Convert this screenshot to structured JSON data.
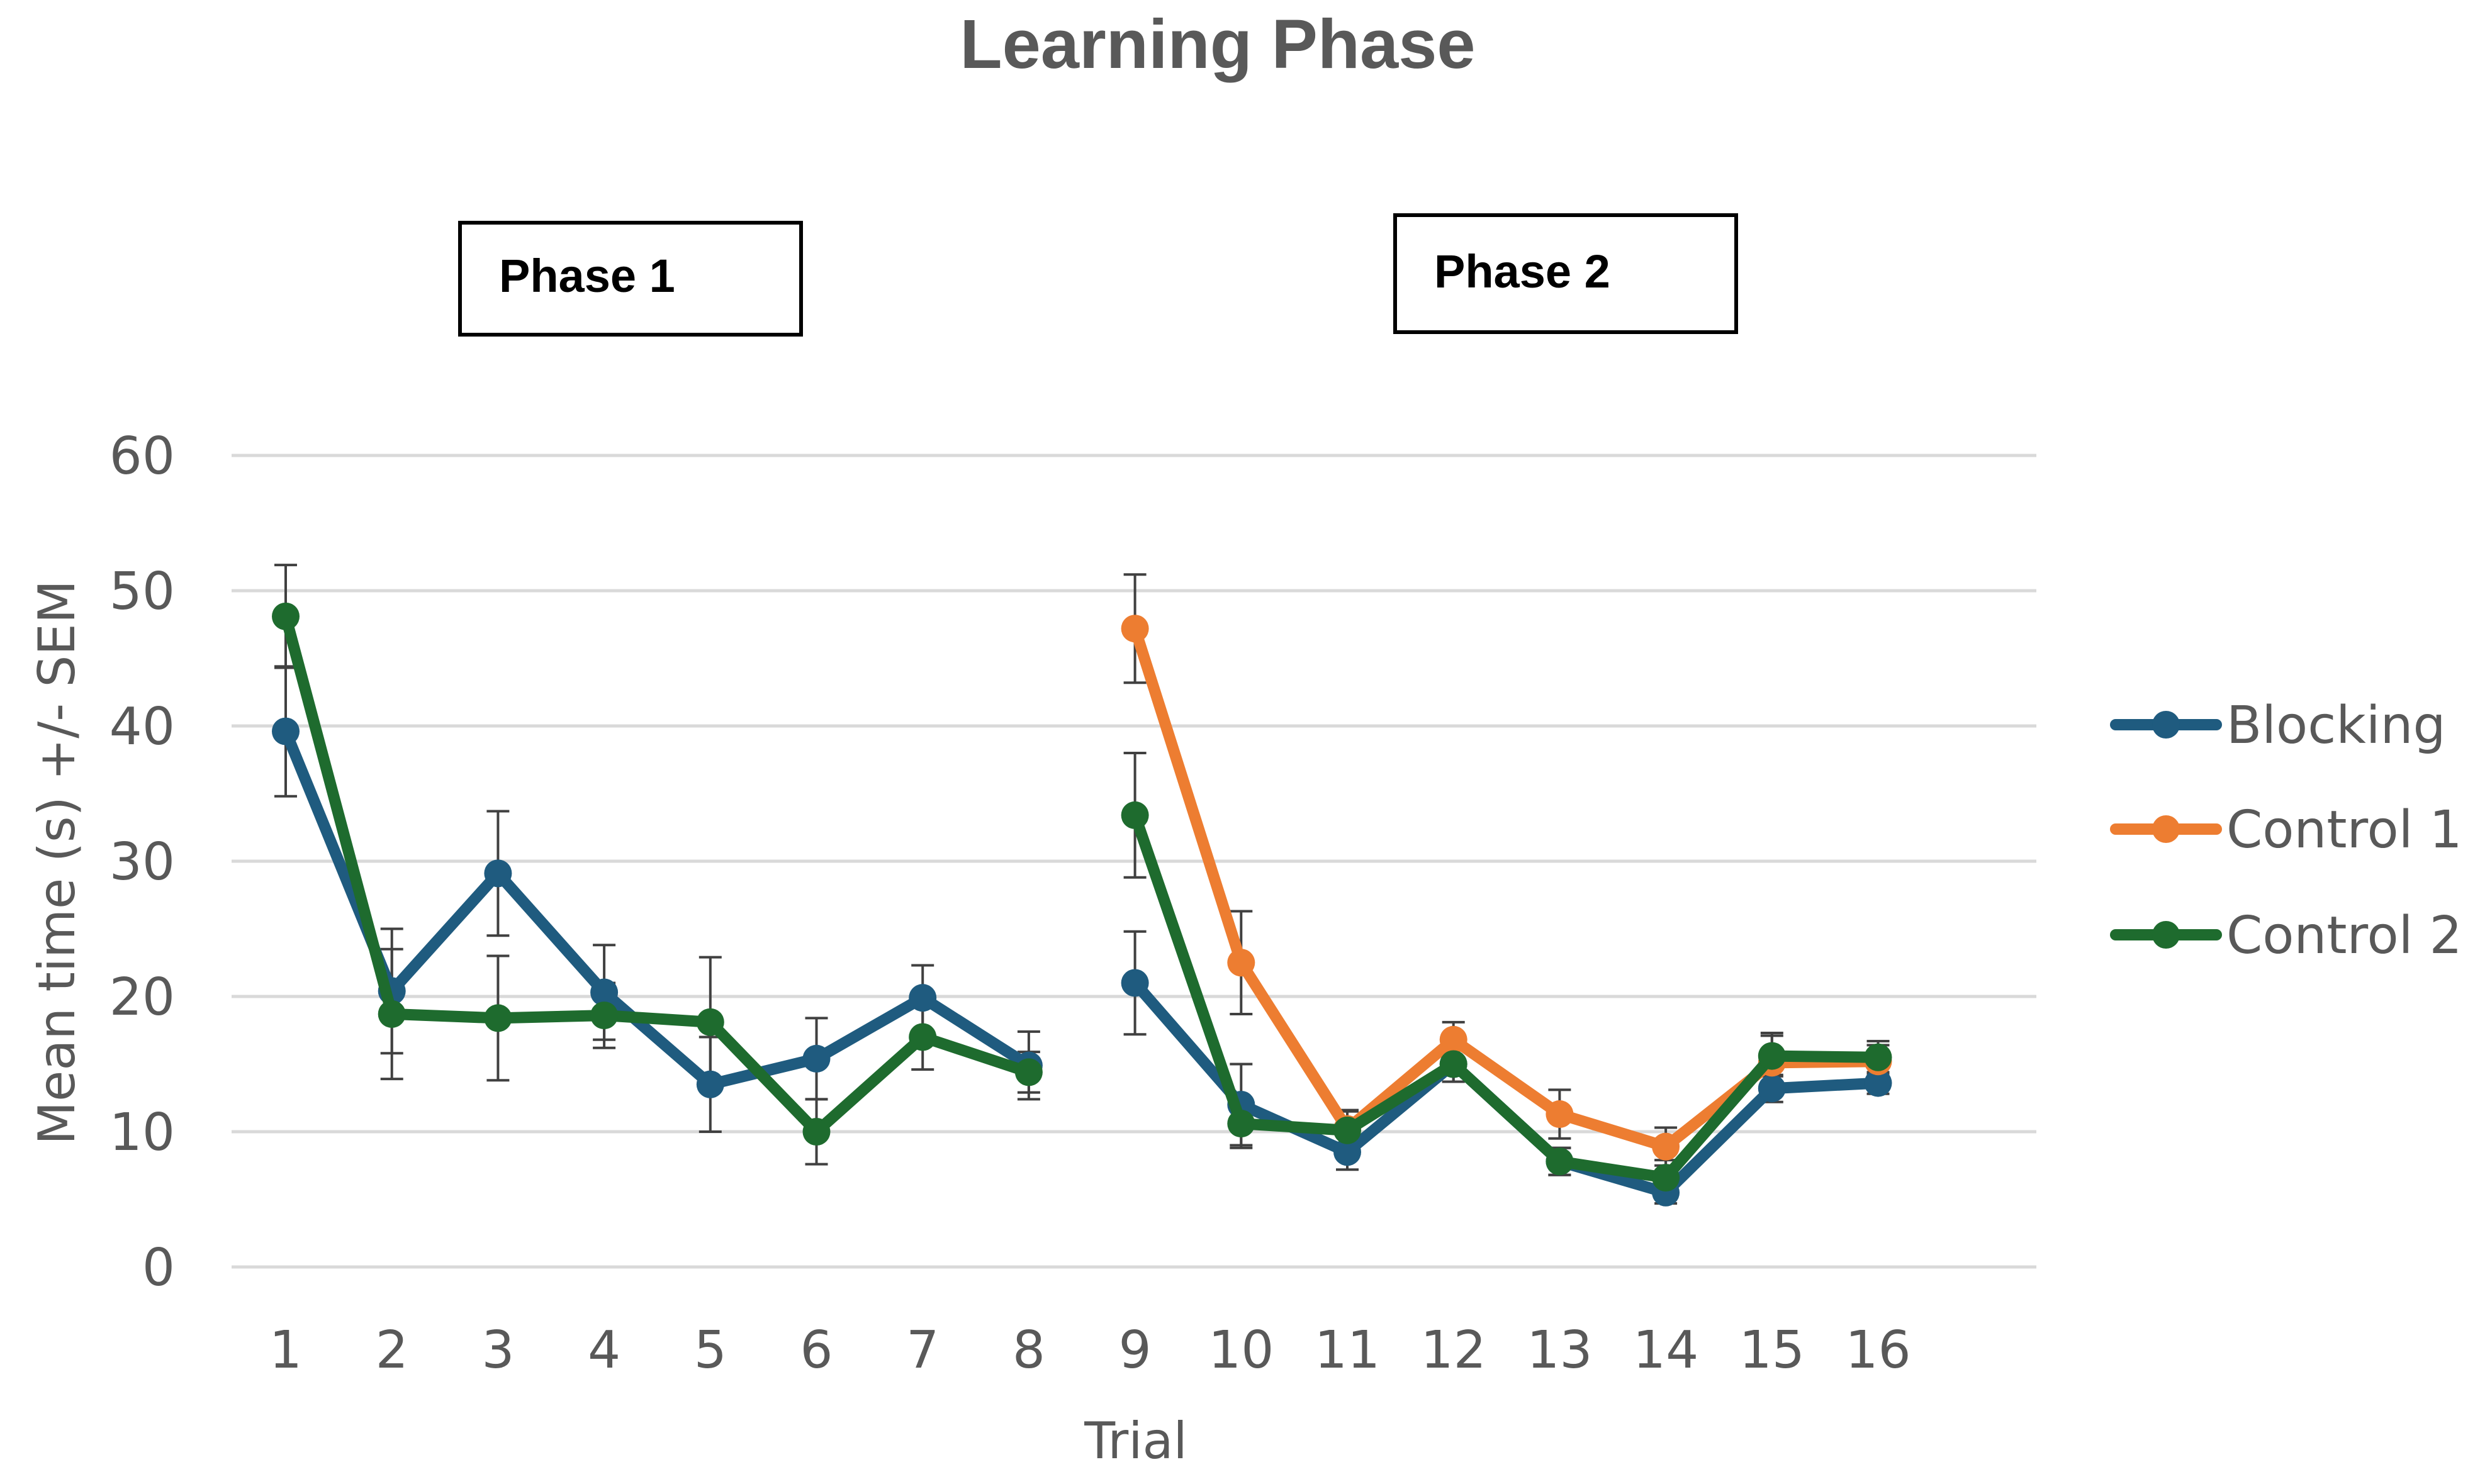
{
  "chart_data": {
    "type": "line",
    "title": "Learning Phase",
    "xlabel": "Trial",
    "ylabel": "Mean time (s) +/- SEM",
    "ylim": [
      0,
      60
    ],
    "yticks": [
      0,
      10,
      20,
      30,
      40,
      50,
      60
    ],
    "grid": true,
    "legend_position": "right",
    "annotations": [
      "Phase 1",
      "Phase 2"
    ],
    "categories": [
      "1",
      "2",
      "3",
      "4",
      "5",
      "6",
      "7",
      "8",
      "9",
      "10",
      "11",
      "12",
      "13",
      "14",
      "15",
      "16"
    ],
    "series": [
      {
        "name": "Blocking",
        "color": "#1f5b7f",
        "segments": [
          {
            "x": [
              1,
              2,
              3,
              4,
              5,
              6,
              7,
              8
            ],
            "y": [
              39.6,
              20.4,
              29.1,
              20.3,
              13.5,
              15.4,
              19.9,
              14.9
            ],
            "err": [
              4.8,
              4.6,
              4.6,
              3.5,
              3.5,
              3.0,
              2.4,
              2.5
            ]
          },
          {
            "x": [
              9,
              10,
              11,
              12,
              13,
              14,
              15,
              16
            ],
            "y": [
              21.0,
              12.0,
              8.5,
              15.0,
              7.8,
              5.5,
              13.2,
              13.6
            ],
            "err": [
              3.8,
              3.0,
              1.3,
              1.3,
              1.0,
              0.8,
              1.0,
              0.8
            ]
          }
        ]
      },
      {
        "name": "Control 1",
        "color": "#ed7d31",
        "segments": [
          {
            "x": [
              9,
              10,
              11,
              12,
              13,
              14,
              15,
              16
            ],
            "y": [
              47.2,
              22.5,
              10.2,
              16.8,
              11.3,
              8.9,
              15.1,
              15.2
            ],
            "err": [
              4.0,
              3.8,
              1.3,
              1.3,
              1.8,
              1.4,
              2.2,
              1.2
            ]
          }
        ]
      },
      {
        "name": "Control 2",
        "color": "#1e6b2e",
        "segments": [
          {
            "x": [
              1,
              2,
              3,
              4,
              5,
              6,
              7,
              8
            ],
            "y": [
              48.1,
              18.7,
              18.4,
              18.6,
              18.1,
              10.0,
              17.0,
              14.4
            ],
            "err": [
              3.8,
              4.8,
              4.6,
              2.4,
              4.8,
              2.4,
              2.4,
              1.5
            ]
          },
          {
            "x": [
              9,
              10,
              11,
              12,
              13,
              14,
              15,
              16
            ],
            "y": [
              33.4,
              10.6,
              10.1,
              15.0,
              7.8,
              6.6,
              15.6,
              15.5
            ],
            "err": [
              4.6,
              1.8,
              1.5,
              1.3,
              1.0,
              1.3,
              1.5,
              1.2
            ]
          }
        ]
      }
    ]
  }
}
